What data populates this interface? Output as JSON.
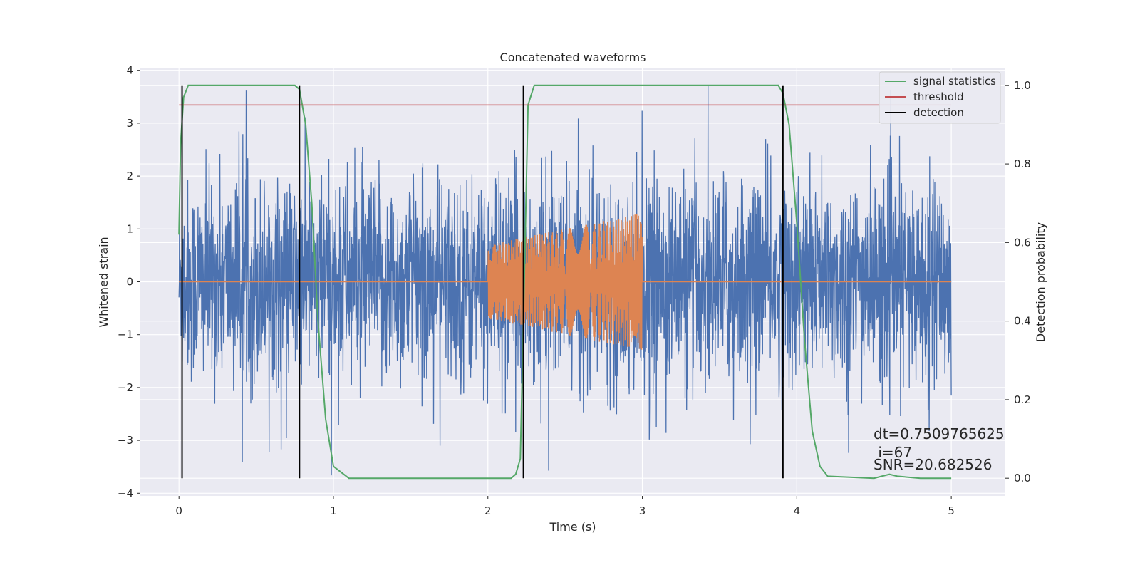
{
  "chart_data": {
    "type": "line",
    "title": "Concatenated waveforms",
    "xlabel": "Time (s)",
    "ylabel": "Whitened strain",
    "y2label": "Detection probability",
    "xlim": [
      -0.25,
      5.35
    ],
    "ylim": [
      -4.05,
      4.05
    ],
    "y2lim": [
      -0.045,
      1.045
    ],
    "x_ticks": [
      "0",
      "1",
      "2",
      "3",
      "4",
      "5"
    ],
    "y_ticks": [
      "−4",
      "−3",
      "−2",
      "−1",
      "0",
      "1",
      "2",
      "3",
      "4"
    ],
    "y2_ticks": [
      "0.0",
      "0.2",
      "0.4",
      "0.6",
      "0.8",
      "1.0"
    ],
    "grid": true,
    "legend_position": "top-right",
    "series": [
      {
        "name": "",
        "axis": "left",
        "kind": "noise",
        "color": "#4c72b0",
        "x_range": [
          0,
          5
        ],
        "values_approx": {
          "envelope_max": 3.7,
          "envelope_min": -3.7
        }
      },
      {
        "name": "",
        "axis": "left",
        "kind": "chirp",
        "color": "#dd8452",
        "x_range": [
          0,
          5
        ],
        "chirp_x": [
          2.0,
          3.0
        ],
        "amplitude_start": 0.7,
        "amplitude_end": 1.3
      },
      {
        "name": "signal statistics",
        "axis": "right",
        "color": "#55a868",
        "x": [
          0,
          0.01,
          0.03,
          0.06,
          0.1,
          0.5,
          0.75,
          0.78,
          0.82,
          0.86,
          0.9,
          0.95,
          1.0,
          1.1,
          1.5,
          2.0,
          2.15,
          2.18,
          2.21,
          2.23,
          2.26,
          2.3,
          2.5,
          3.0,
          3.5,
          3.88,
          3.91,
          3.95,
          4.0,
          4.05,
          4.1,
          4.15,
          4.2,
          4.5,
          4.55,
          4.6,
          4.65,
          4.8,
          5.0
        ],
        "values": [
          0.62,
          0.85,
          0.97,
          1.0,
          1.0,
          1.0,
          1.0,
          0.99,
          0.9,
          0.7,
          0.4,
          0.15,
          0.03,
          0.0,
          0.0,
          0.0,
          0.0,
          0.01,
          0.05,
          0.4,
          0.95,
          1.0,
          1.0,
          1.0,
          1.0,
          1.0,
          0.98,
          0.9,
          0.65,
          0.35,
          0.12,
          0.03,
          0.005,
          0.0,
          0.005,
          0.01,
          0.005,
          0.0,
          0.0
        ]
      },
      {
        "name": "threshold",
        "axis": "right",
        "color": "#c44e52",
        "x": [
          0,
          5
        ],
        "values": [
          0.95,
          0.95
        ]
      },
      {
        "name": "detection",
        "axis": "right",
        "color": "#000000",
        "kind": "vlines",
        "x": [
          0.02,
          0.78,
          2.23,
          3.91
        ],
        "y_range": [
          0.0,
          1.0
        ]
      }
    ],
    "annotations": [
      "dt=0.7509765625",
      " i=67",
      "SNR=20.682526"
    ]
  }
}
